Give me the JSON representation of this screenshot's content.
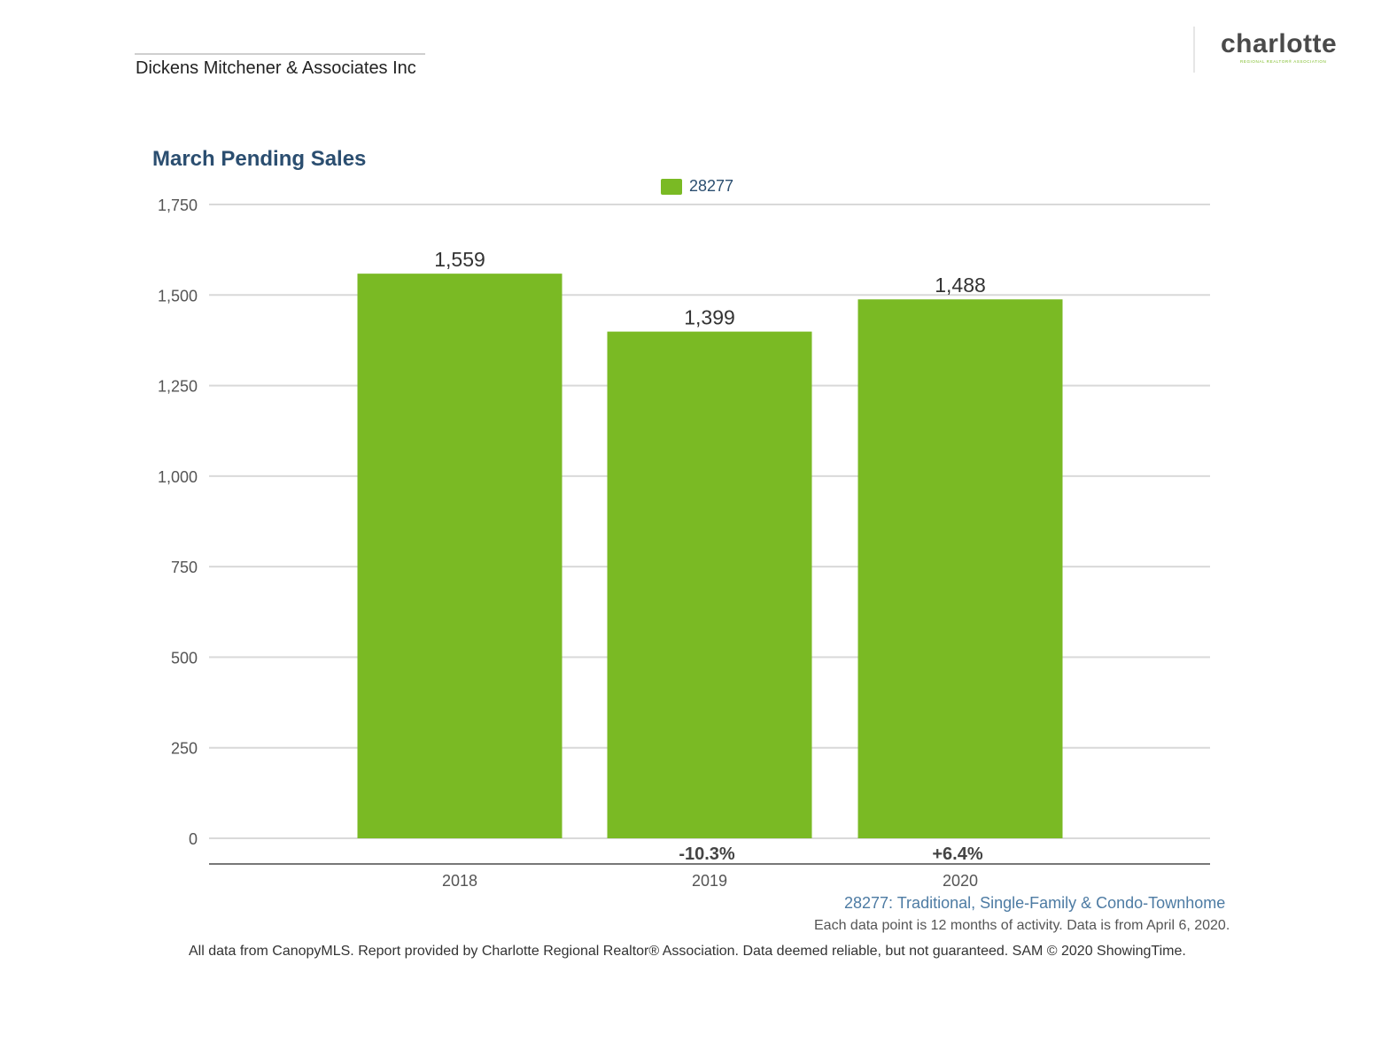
{
  "header": {
    "company": "Dickens Mitchener & Associates Inc",
    "logo_text": "charlotte",
    "logo_subtext": "REGIONAL REALTOR® ASSOCIATION"
  },
  "colors": {
    "bar": "#7aba24",
    "title": "#2b4e70",
    "grid": "#d9d9d9",
    "axis": "#777777",
    "caption": "#4d7ba3"
  },
  "chart_data": {
    "type": "bar",
    "title": "March Pending Sales",
    "categories": [
      "2018",
      "2019",
      "2020"
    ],
    "series": [
      {
        "name": "28277",
        "values": [
          1559,
          1399,
          1488
        ]
      }
    ],
    "data_labels": [
      "1,559",
      "1,399",
      "1,488"
    ],
    "change_labels": [
      "",
      "-10.3%",
      "+6.4%"
    ],
    "ylim": [
      0,
      1750
    ],
    "yticks": [
      0,
      250,
      500,
      750,
      1000,
      1250,
      1500,
      1750
    ],
    "ytick_labels": [
      "0",
      "250",
      "500",
      "750",
      "1,000",
      "1,250",
      "1,500",
      "1,750"
    ],
    "grid": true,
    "legend_position": "top-center"
  },
  "captions": {
    "series_description": "28277: Traditional, Single-Family & Condo-Townhome",
    "note": "Each data point is 12 months of activity. Data is from April 6, 2020.",
    "footer": "All data from CanopyMLS. Report provided by Charlotte Regional Realtor® Association. Data deemed reliable, but not guaranteed. SAM © 2020 ShowingTime."
  }
}
